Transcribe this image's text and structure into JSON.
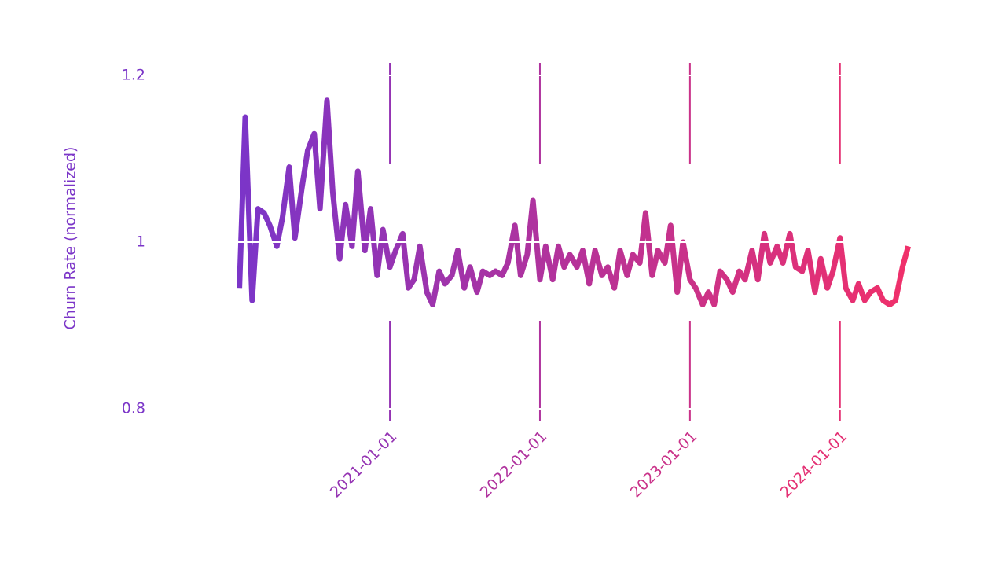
{
  "chart_data": {
    "type": "line",
    "y_label": "Churn Rate (normalized)",
    "x": [
      "2020-01-01",
      "2020-01-15",
      "2020-02-01",
      "2020-02-15",
      "2020-03-01",
      "2020-03-15",
      "2020-04-01",
      "2020-04-15",
      "2020-05-01",
      "2020-05-15",
      "2020-06-01",
      "2020-06-15",
      "2020-07-01",
      "2020-07-15",
      "2020-08-01",
      "2020-08-15",
      "2020-09-01",
      "2020-09-15",
      "2020-10-01",
      "2020-10-15",
      "2020-11-01",
      "2020-11-15",
      "2020-12-01",
      "2020-12-15",
      "2021-01-01",
      "2021-01-15",
      "2021-02-01",
      "2021-02-15",
      "2021-03-01",
      "2021-03-15",
      "2021-04-01",
      "2021-04-15",
      "2021-05-01",
      "2021-05-15",
      "2021-06-01",
      "2021-06-15",
      "2021-07-01",
      "2021-07-15",
      "2021-08-01",
      "2021-08-15",
      "2021-09-01",
      "2021-09-15",
      "2021-10-01",
      "2021-10-15",
      "2021-11-01",
      "2021-11-15",
      "2021-12-01",
      "2021-12-15",
      "2022-01-01",
      "2022-01-15",
      "2022-02-01",
      "2022-02-15",
      "2022-03-01",
      "2022-03-15",
      "2022-04-01",
      "2022-04-15",
      "2022-05-01",
      "2022-05-15",
      "2022-06-01",
      "2022-06-15",
      "2022-07-01",
      "2022-07-15",
      "2022-08-01",
      "2022-08-15",
      "2022-09-01",
      "2022-09-15",
      "2022-10-01",
      "2022-10-15",
      "2022-11-01",
      "2022-11-15",
      "2022-12-01",
      "2022-12-15",
      "2023-01-01",
      "2023-01-15",
      "2023-02-01",
      "2023-02-15",
      "2023-03-01",
      "2023-03-15",
      "2023-04-01",
      "2023-04-15",
      "2023-05-01",
      "2023-05-15",
      "2023-06-01",
      "2023-06-15",
      "2023-07-01",
      "2023-07-15",
      "2023-08-01",
      "2023-08-15",
      "2023-09-01",
      "2023-09-15",
      "2023-10-01",
      "2023-10-15",
      "2023-11-01",
      "2023-11-15",
      "2023-12-01",
      "2023-12-15",
      "2024-01-01",
      "2024-01-15",
      "2024-02-01",
      "2024-02-15",
      "2024-03-01",
      "2024-03-15",
      "2024-04-01",
      "2024-04-15",
      "2024-05-01",
      "2024-05-15",
      "2024-06-01",
      "2024-06-15"
    ],
    "series": [
      {
        "name": "Churn Rate",
        "color_start": "#7b35c8",
        "color_end": "#f0306a",
        "values": [
          0.945,
          1.15,
          0.93,
          1.04,
          1.035,
          1.02,
          0.995,
          1.03,
          1.09,
          1.005,
          1.065,
          1.11,
          1.13,
          1.04,
          1.17,
          1.06,
          0.98,
          1.045,
          0.995,
          1.085,
          0.99,
          1.04,
          0.96,
          1.015,
          0.97,
          0.99,
          1.01,
          0.945,
          0.955,
          0.995,
          0.94,
          0.925,
          0.965,
          0.95,
          0.96,
          0.99,
          0.945,
          0.97,
          0.94,
          0.965,
          0.96,
          0.965,
          0.96,
          0.975,
          1.02,
          0.96,
          0.985,
          1.05,
          0.955,
          0.995,
          0.955,
          0.995,
          0.97,
          0.985,
          0.97,
          0.99,
          0.95,
          0.99,
          0.96,
          0.97,
          0.945,
          0.99,
          0.96,
          0.985,
          0.975,
          1.035,
          0.96,
          0.99,
          0.975,
          1.02,
          0.94,
          1.0,
          0.955,
          0.945,
          0.925,
          0.94,
          0.925,
          0.965,
          0.955,
          0.94,
          0.965,
          0.955,
          0.99,
          0.955,
          1.01,
          0.975,
          0.995,
          0.975,
          1.01,
          0.97,
          0.965,
          0.99,
          0.94,
          0.98,
          0.945,
          0.965,
          1.005,
          0.945,
          0.93,
          0.95,
          0.93,
          0.94,
          0.945,
          0.93,
          0.925,
          0.93,
          0.97,
          0.995
        ]
      }
    ],
    "xlim": [
      "2019-06-01",
      "2024-12-01"
    ],
    "xticks": [
      "2021-01-01",
      "2022-01-01",
      "2023-01-01",
      "2024-01-01"
    ],
    "ylim": [
      0.8,
      1.2
    ],
    "yticks": [
      0.8,
      1.0,
      1.2
    ],
    "ytick_color": "#7b35c8",
    "grid": true
  }
}
